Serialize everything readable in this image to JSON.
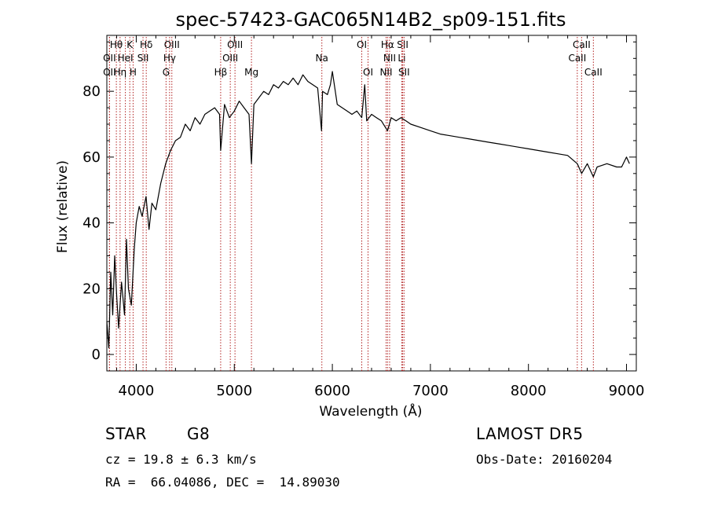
{
  "chart_data": {
    "type": "line",
    "title": "spec-57423-GAC065N14B2_sp09-151.fits",
    "xlabel": "Wavelength (Å)",
    "ylabel": "Flux (relative)",
    "xlim": [
      3700,
      9100
    ],
    "ylim": [
      -5,
      97
    ],
    "xticks": [
      4000,
      5000,
      6000,
      7000,
      8000,
      9000
    ],
    "yticks": [
      0,
      20,
      40,
      60,
      80
    ],
    "grid": false,
    "legend": "none",
    "line_color": "#000000",
    "marker_color": "#b22222",
    "series": [
      {
        "x": [
          3700,
          3720,
          3740,
          3760,
          3780,
          3800,
          3820,
          3850,
          3880,
          3900,
          3920,
          3950,
          3980,
          4000,
          4030,
          4060,
          4100,
          4130,
          4160,
          4200,
          4250,
          4300,
          4350,
          4400,
          4450,
          4500,
          4550,
          4600,
          4650,
          4700,
          4750,
          4800,
          4850,
          4861,
          4900,
          4950,
          5000,
          5050,
          5100,
          5150,
          5175,
          5200,
          5250,
          5300,
          5350,
          5400,
          5450,
          5500,
          5550,
          5600,
          5650,
          5700,
          5750,
          5800,
          5850,
          5890,
          5900,
          5950,
          5980,
          6000,
          6050,
          6100,
          6150,
          6200,
          6250,
          6300,
          6330,
          6350,
          6400,
          6450,
          6500,
          6563,
          6600,
          6650,
          6700,
          6750,
          6800,
          6900,
          7000,
          7100,
          7200,
          7300,
          7400,
          7500,
          7600,
          7700,
          7800,
          7900,
          8000,
          8100,
          8200,
          8300,
          8400,
          8498,
          8542,
          8600,
          8662,
          8700,
          8800,
          8900,
          8950,
          9000,
          9030
        ],
        "y": [
          10,
          2,
          25,
          12,
          30,
          18,
          8,
          22,
          12,
          35,
          20,
          15,
          32,
          40,
          45,
          42,
          48,
          38,
          46,
          44,
          52,
          58,
          62,
          65,
          66,
          70,
          68,
          72,
          70,
          73,
          74,
          75,
          73,
          62,
          76,
          72,
          74,
          77,
          75,
          73,
          58,
          76,
          78,
          80,
          79,
          82,
          81,
          83,
          82,
          84,
          82,
          85,
          83,
          82,
          81,
          68,
          80,
          79,
          82,
          86,
          76,
          75,
          74,
          73,
          74,
          72,
          82,
          71,
          73,
          72,
          71,
          68,
          72,
          71,
          72,
          71,
          70,
          69,
          68,
          67,
          66.5,
          66,
          65.5,
          65,
          64.5,
          64,
          63.5,
          63,
          62.5,
          62,
          61.5,
          61,
          60.5,
          58,
          55,
          58,
          54,
          57,
          58,
          57,
          57,
          60,
          58
        ]
      }
    ],
    "line_markers": [
      {
        "label": "Hθ",
        "x": 3797,
        "row": 0
      },
      {
        "label": "K",
        "x": 3934,
        "row": 0
      },
      {
        "label": "Hδ",
        "x": 4102,
        "row": 0
      },
      {
        "label": "OIII",
        "x": 4363,
        "row": 0
      },
      {
        "label": "OIII",
        "x": 5007,
        "row": 0
      },
      {
        "label": "OI",
        "x": 6300,
        "row": 0
      },
      {
        "label": "Hα",
        "x": 6563,
        "row": 0
      },
      {
        "label": "SII",
        "x": 6717,
        "row": 0
      },
      {
        "label": "CaII",
        "x": 8542,
        "row": 0
      },
      {
        "label": "OII",
        "x": 3727,
        "row": 1
      },
      {
        "label": "HeI",
        "x": 3889,
        "row": 1
      },
      {
        "label": "SII",
        "x": 4069,
        "row": 1
      },
      {
        "label": "Hγ",
        "x": 4340,
        "row": 1
      },
      {
        "label": "OIII",
        "x": 4959,
        "row": 1
      },
      {
        "label": "Na",
        "x": 5893,
        "row": 1
      },
      {
        "label": "NII",
        "x": 6584,
        "row": 1
      },
      {
        "label": "Li",
        "x": 6708,
        "row": 1
      },
      {
        "label": "CaII",
        "x": 8498,
        "row": 1
      },
      {
        "label": "OII",
        "x": 3727,
        "row": 2
      },
      {
        "label": "Hη",
        "x": 3835,
        "row": 2
      },
      {
        "label": "H",
        "x": 3968,
        "row": 2
      },
      {
        "label": "G",
        "x": 4304,
        "row": 2
      },
      {
        "label": "Hβ",
        "x": 4861,
        "row": 2
      },
      {
        "label": "Mg",
        "x": 5175,
        "row": 2
      },
      {
        "label": "OI",
        "x": 6364,
        "row": 2
      },
      {
        "label": "NII",
        "x": 6548,
        "row": 2
      },
      {
        "label": "SII",
        "x": 6731,
        "row": 2
      },
      {
        "label": "CaII",
        "x": 8662,
        "row": 2
      }
    ]
  },
  "info": {
    "object_class": "STAR",
    "subclass": "G8",
    "survey": "LAMOST DR5",
    "redshift": "cz = 19.8 ± 6.3 km/s",
    "obs_date": "Obs-Date: 20160204",
    "coords": "RA =  66.04086, DEC =  14.89030"
  }
}
